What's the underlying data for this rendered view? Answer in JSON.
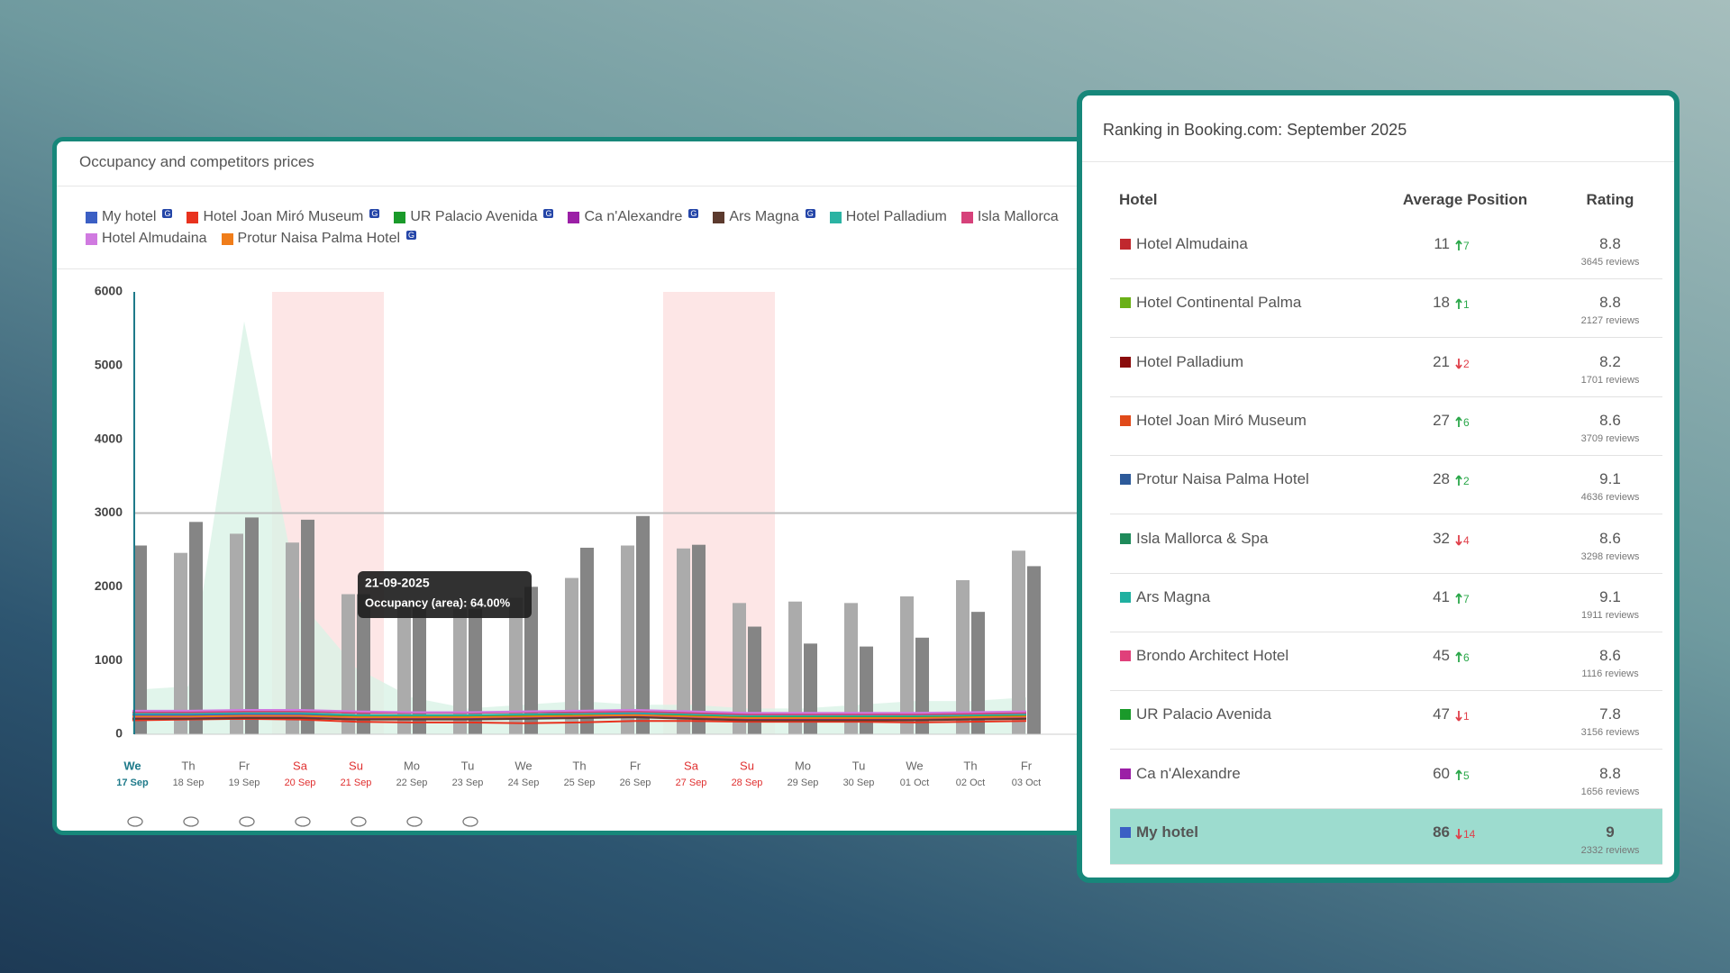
{
  "chart_data": {
    "type": "bar",
    "title": "Occupancy and competitors prices",
    "categories": [
      "17 Sep",
      "18 Sep",
      "19 Sep",
      "20 Sep",
      "21 Sep",
      "22 Sep",
      "23 Sep",
      "24 Sep",
      "25 Sep",
      "26 Sep",
      "27 Sep",
      "28 Sep",
      "29 Sep",
      "30 Sep",
      "01 Oct",
      "02 Oct",
      "03 Oct"
    ],
    "weekdays": [
      "We",
      "Th",
      "Fr",
      "Sa",
      "Su",
      "Mo",
      "Tu",
      "We",
      "Th",
      "Fr",
      "Sa",
      "Su",
      "Mo",
      "Tu",
      "We",
      "Th",
      "Fr"
    ],
    "current_category": "17 Sep",
    "shaded_categories": [
      "20 Sep",
      "21 Sep",
      "27 Sep",
      "28 Sep"
    ],
    "shade_color": "#fde6e6",
    "ylim": [
      0,
      6000
    ],
    "yticks": [
      0,
      1000,
      2000,
      3000,
      4000,
      5000,
      6000
    ],
    "grid": false,
    "reference_line": 3000,
    "bar_series": [
      {
        "color": "#ababab",
        "values": [
          null,
          2460,
          2720,
          2600,
          1900,
          1750,
          1700,
          1850,
          2120,
          2560,
          2520,
          1780,
          1800,
          1780,
          1870,
          2090,
          2490
        ]
      },
      {
        "color": "#858585",
        "values": [
          2560,
          2880,
          2940,
          2910,
          1900,
          1800,
          1700,
          2000,
          2530,
          2960,
          2570,
          1460,
          1230,
          1190,
          1310,
          1660,
          2280
        ]
      }
    ],
    "area": {
      "color": "#d9f2e6",
      "values": [
        600,
        650,
        5600,
        1800,
        900,
        500,
        350,
        400,
        450,
        400,
        400,
        350,
        350,
        400,
        450,
        450,
        500
      ]
    },
    "series": [
      {
        "name": "My hotel",
        "badge": "G",
        "color": "#3b5fc4",
        "values": [
          260,
          260,
          270,
          270,
          240,
          250,
          240,
          260,
          260,
          270,
          240,
          200,
          220,
          200,
          200,
          210,
          230
        ]
      },
      {
        "name": "Hotel Joan Miró Museum",
        "badge": "G",
        "color": "#e8321e",
        "values": [
          190,
          200,
          210,
          200,
          170,
          160,
          160,
          150,
          160,
          180,
          180,
          170,
          170,
          170,
          160,
          170,
          180
        ]
      },
      {
        "name": "UR Palacio Avenida",
        "badge": "G",
        "color": "#1a9a2a",
        "values": [
          230,
          240,
          250,
          250,
          240,
          250,
          250,
          260,
          270,
          300,
          250,
          230,
          230,
          230,
          230,
          240,
          260
        ]
      },
      {
        "name": "Ca n'Alexandre",
        "badge": "G",
        "color": "#9b1fa6",
        "values": [
          220,
          220,
          230,
          230,
          210,
          210,
          210,
          220,
          230,
          240,
          220,
          200,
          200,
          200,
          210,
          210,
          220
        ]
      },
      {
        "name": "Ars Magna",
        "badge": "G",
        "color": "#5c3a2e",
        "values": [
          210,
          210,
          220,
          220,
          200,
          200,
          200,
          210,
          220,
          230,
          210,
          190,
          190,
          190,
          190,
          200,
          210
        ]
      },
      {
        "name": "Hotel Palladium",
        "color": "#2bb3a3",
        "values": [
          280,
          280,
          290,
          290,
          260,
          260,
          260,
          270,
          280,
          290,
          270,
          250,
          250,
          250,
          250,
          260,
          270
        ]
      },
      {
        "name": "Isla Mallorca",
        "color": "#d6417a",
        "values": [
          300,
          300,
          310,
          310,
          290,
          290,
          290,
          300,
          300,
          310,
          290,
          270,
          270,
          270,
          270,
          280,
          290
        ]
      },
      {
        "name": "Hotel Almudaina",
        "color": "#d07ae0",
        "values": [
          320,
          320,
          330,
          330,
          310,
          300,
          300,
          310,
          320,
          330,
          310,
          290,
          290,
          290,
          290,
          300,
          310
        ]
      },
      {
        "name": "Protur Naisa Palma Hotel",
        "badge": "G",
        "color": "#f07d1a",
        "values": [
          240,
          240,
          250,
          250,
          230,
          230,
          230,
          240,
          250,
          260,
          240,
          220,
          220,
          220,
          220,
          230,
          240
        ]
      }
    ],
    "tooltip": {
      "title": "21-09-2025",
      "text": "Occupancy (area): 64.00%"
    }
  },
  "ranking": {
    "title": "Ranking in Booking.com: September 2025",
    "columns": [
      "Hotel",
      "Average Position",
      "Rating"
    ],
    "rows": [
      {
        "hotel": "Hotel Almudaina",
        "color": "#c0282e",
        "position": 11,
        "change": 7,
        "trend": "up",
        "rating": 8.8,
        "reviews": "3645 reviews"
      },
      {
        "hotel": "Hotel Continental Palma",
        "color": "#6ab017",
        "position": 18,
        "change": 1,
        "trend": "up",
        "rating": 8.8,
        "reviews": "2127 reviews"
      },
      {
        "hotel": "Hotel Palladium",
        "color": "#8a0c0c",
        "position": 21,
        "change": 2,
        "trend": "down",
        "rating": 8.2,
        "reviews": "1701 reviews"
      },
      {
        "hotel": "Hotel Joan Miró Museum",
        "color": "#e04a1a",
        "position": 27,
        "change": 6,
        "trend": "up",
        "rating": 8.6,
        "reviews": "3709 reviews"
      },
      {
        "hotel": "Protur Naisa Palma Hotel",
        "color": "#2d5a9a",
        "position": 28,
        "change": 2,
        "trend": "up",
        "rating": 9.1,
        "reviews": "4636 reviews"
      },
      {
        "hotel": "Isla Mallorca & Spa",
        "color": "#1e8a5a",
        "position": 32,
        "change": 4,
        "trend": "down",
        "rating": 8.6,
        "reviews": "3298 reviews"
      },
      {
        "hotel": "Ars Magna",
        "color": "#1fb0a0",
        "position": 41,
        "change": 7,
        "trend": "up",
        "rating": 9.1,
        "reviews": "1911 reviews"
      },
      {
        "hotel": "Brondo Architect Hotel",
        "color": "#e0407a",
        "position": 45,
        "change": 6,
        "trend": "up",
        "rating": 8.6,
        "reviews": "1116 reviews"
      },
      {
        "hotel": "UR Palacio Avenida",
        "color": "#1a9a2a",
        "position": 47,
        "change": 1,
        "trend": "down",
        "rating": 7.8,
        "reviews": "3156 reviews"
      },
      {
        "hotel": "Ca n'Alexandre",
        "color": "#9b1fa6",
        "position": 60,
        "change": 5,
        "trend": "up",
        "rating": 8.8,
        "reviews": "1656 reviews"
      },
      {
        "hotel": "My hotel",
        "color": "#3b5fc4",
        "position": 86,
        "change": 14,
        "trend": "down",
        "rating": 9,
        "reviews": "2332 reviews",
        "highlight": true
      }
    ]
  }
}
